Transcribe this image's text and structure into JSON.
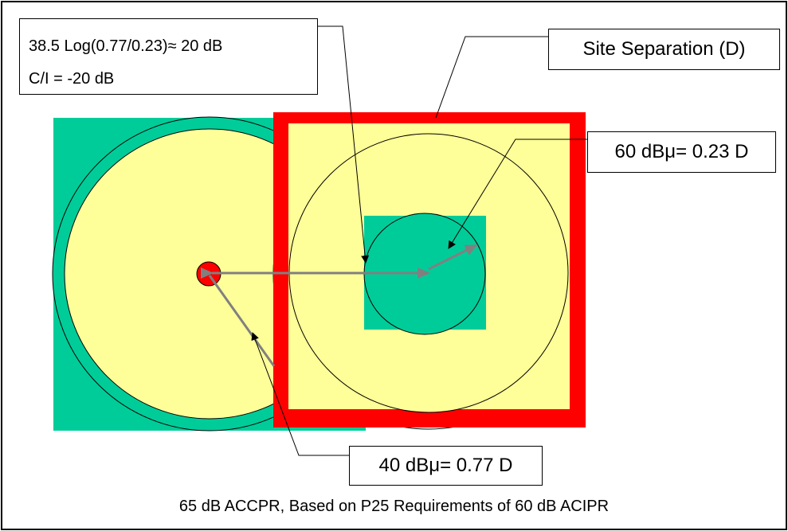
{
  "labels": {
    "formula_line1": "38.5 Log(0.77/0.23)≈ 20 dB",
    "formula_line2": "C/I = -20 dB",
    "site_separation": "Site Separation (D)",
    "inner_radius": "60 dBμ= 0.23 D",
    "outer_radius": "40 dBμ= 0.77 D",
    "caption": "65 dB ACCPR, Based on P25 Requirements of 60 dB ACIPR"
  },
  "colors": {
    "green": "#00CC99",
    "yellow": "#FFFF99",
    "red": "#FF0000",
    "arrow": "#808080",
    "line": "#000000"
  }
}
